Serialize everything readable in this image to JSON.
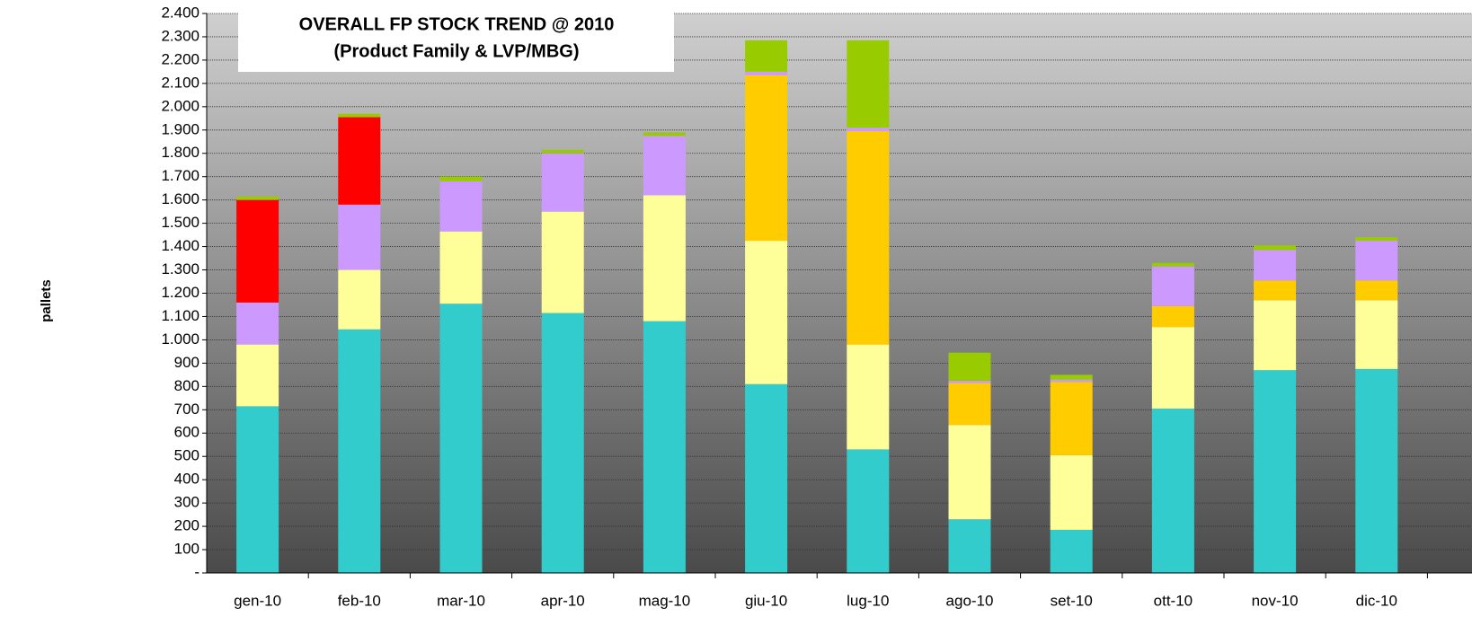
{
  "chart_data": {
    "type": "stacked-bar",
    "title": "OVERALL FP STOCK TREND @ 2010",
    "subtitle": "(Product Family & LVP/MBG)",
    "y_label": "pallets",
    "categories": [
      "gen-10",
      "feb-10",
      "mar-10",
      "apr-10",
      "mag-10",
      "giu-10",
      "lug-10",
      "ago-10",
      "set-10",
      "ott-10",
      "nov-10",
      "dic-10"
    ],
    "series": [
      {
        "color": "#33cccc",
        "values": [
          715,
          1045,
          1155,
          1115,
          1080,
          810,
          530,
          230,
          185,
          705,
          870,
          875
        ]
      },
      {
        "color": "#ffff99",
        "values": [
          265,
          255,
          310,
          435,
          540,
          615,
          450,
          405,
          320,
          350,
          300,
          295
        ]
      },
      {
        "color": "#ffcc00",
        "values": [
          0,
          0,
          0,
          0,
          0,
          710,
          915,
          180,
          315,
          90,
          85,
          85
        ]
      },
      {
        "color": "#cc99ff",
        "values": [
          180,
          280,
          215,
          250,
          255,
          15,
          15,
          10,
          10,
          170,
          130,
          170
        ]
      },
      {
        "color": "#ff0000",
        "values": [
          440,
          375,
          0,
          0,
          0,
          0,
          0,
          0,
          0,
          0,
          0,
          0
        ]
      },
      {
        "color": "#99cc00",
        "values": [
          15,
          15,
          20,
          15,
          15,
          135,
          375,
          120,
          20,
          15,
          20,
          15
        ]
      }
    ],
    "ylim": [
      0,
      2400
    ],
    "yticks": [
      {
        "value": 0,
        "label": "-"
      },
      100,
      200,
      300,
      400,
      500,
      600,
      700,
      800,
      900,
      {
        "value": 1000,
        "label": "1.000"
      },
      {
        "value": 1100,
        "label": "1.100"
      },
      {
        "value": 1200,
        "label": "1.200"
      },
      {
        "value": 1300,
        "label": "1.300"
      },
      {
        "value": 1400,
        "label": "1.400"
      },
      {
        "value": 1500,
        "label": "1.500"
      },
      {
        "value": 1600,
        "label": "1.600"
      },
      {
        "value": 1700,
        "label": "1.700"
      },
      {
        "value": 1800,
        "label": "1.800"
      },
      {
        "value": 1900,
        "label": "1.900"
      },
      {
        "value": 2000,
        "label": "2.000"
      },
      {
        "value": 2100,
        "label": "2.100"
      },
      {
        "value": 2200,
        "label": "2.200"
      },
      {
        "value": 2300,
        "label": "2.300"
      },
      {
        "value": 2400,
        "label": "2.400"
      }
    ],
    "grid": true
  }
}
